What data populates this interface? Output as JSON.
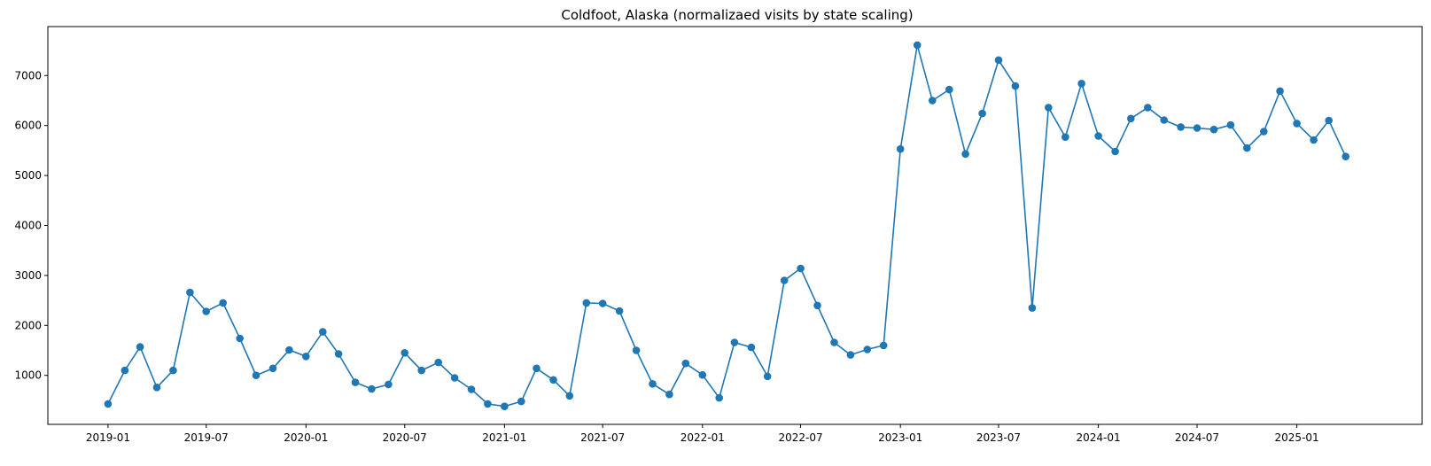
{
  "chart_data": {
    "type": "line",
    "title": "Coldfoot, Alaska (normalizaed visits by state scaling)",
    "xlabel": "",
    "ylabel": "",
    "x_tick_labels": [
      "2019-01",
      "2019-07",
      "2020-01",
      "2020-07",
      "2021-01",
      "2021-07",
      "2022-01",
      "2022-07",
      "2023-01",
      "2023-07",
      "2024-01",
      "2024-07",
      "2025-01"
    ],
    "y_ticks": [
      1000,
      2000,
      3000,
      4000,
      5000,
      6000,
      7000
    ],
    "xlim": [
      "2018-09-12",
      "2025-08-20"
    ],
    "ylim": [
      20,
      7980
    ],
    "grid": false,
    "marker": "circle",
    "color": "#1f77b4",
    "series": [
      {
        "x": [
          "2019-01",
          "2019-02",
          "2019-03",
          "2019-04",
          "2019-05",
          "2019-06",
          "2019-07",
          "2019-08",
          "2019-09",
          "2019-10",
          "2019-11",
          "2019-12",
          "2020-01",
          "2020-02",
          "2020-03",
          "2020-04",
          "2020-05",
          "2020-06",
          "2020-07",
          "2020-08",
          "2020-09",
          "2020-10",
          "2020-11",
          "2020-12",
          "2021-01",
          "2021-02",
          "2021-03",
          "2021-04",
          "2021-05",
          "2021-06",
          "2021-07",
          "2021-08",
          "2021-09",
          "2021-10",
          "2021-11",
          "2021-12",
          "2022-01",
          "2022-02",
          "2022-03",
          "2022-04",
          "2022-05",
          "2022-06",
          "2022-07",
          "2022-08",
          "2022-09",
          "2022-10",
          "2022-11",
          "2022-12",
          "2023-01",
          "2023-02",
          "2023-03",
          "2023-04",
          "2023-05",
          "2023-06",
          "2023-07",
          "2023-08",
          "2023-09",
          "2023-10",
          "2023-11",
          "2023-12",
          "2024-01",
          "2024-02",
          "2024-03",
          "2024-04",
          "2024-05",
          "2024-06",
          "2024-07",
          "2024-08",
          "2024-09",
          "2024-10",
          "2024-11",
          "2024-12",
          "2025-01",
          "2025-02",
          "2025-03",
          "2025-04"
        ],
        "y": [
          430,
          1100,
          1570,
          760,
          1100,
          2660,
          2280,
          2450,
          1740,
          1000,
          1140,
          1510,
          1380,
          1870,
          1430,
          860,
          730,
          820,
          1450,
          1100,
          1260,
          950,
          720,
          430,
          380,
          480,
          1140,
          910,
          590,
          2450,
          2440,
          2290,
          1500,
          830,
          620,
          1240,
          1010,
          550,
          1660,
          1560,
          980,
          2900,
          3140,
          2400,
          1660,
          1410,
          1520,
          1600,
          5530,
          7610,
          6500,
          6720,
          5430,
          6240,
          7310,
          6790,
          2350,
          6360,
          5770,
          6840,
          5790,
          5480,
          6140,
          6360,
          6110,
          5970,
          5950,
          5920,
          6010,
          5550,
          5880,
          6690,
          6040,
          5710,
          6100,
          5380
        ]
      }
    ]
  }
}
